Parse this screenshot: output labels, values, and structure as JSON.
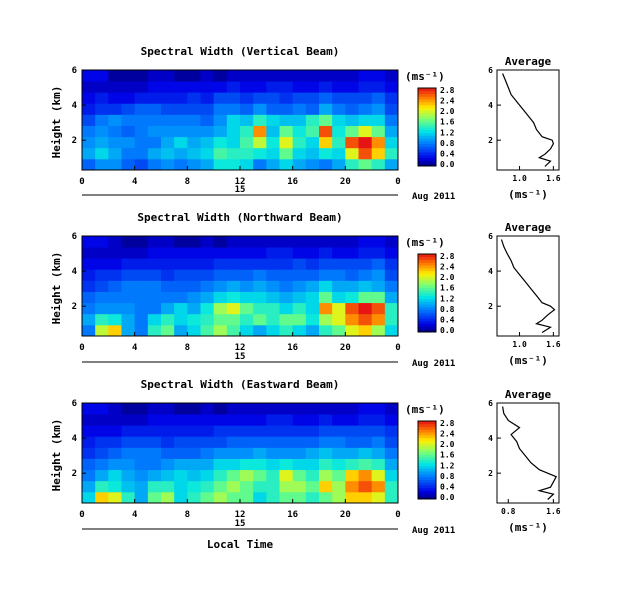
{
  "chart_data": [
    {
      "type": "heatmap",
      "title": "Spectral Width (Vertical Beam)",
      "ylabel": "Height (km)",
      "xlabel": "",
      "xlim": [
        0,
        24
      ],
      "ylim": [
        0.3,
        6.0
      ],
      "xticks": [
        "0",
        "4",
        "8",
        "12",
        "16",
        "20",
        "0"
      ],
      "yticks": [
        "2",
        "4",
        "6"
      ],
      "date_marker": "15",
      "date_label": "Aug 2011",
      "colorbar": {
        "unit": "(ms⁻¹)",
        "min": 0.0,
        "max": 2.8,
        "labels": [
          "2.8",
          "2.4",
          "2.0",
          "1.6",
          "1.2",
          "0.8",
          "0.4",
          "0.0"
        ]
      },
      "rows_low_to_high": [
        [
          0.7,
          0.9,
          0.9,
          0.7,
          0.6,
          0.8,
          0.9,
          0.8,
          0.9,
          1.0,
          1.3,
          1.3,
          1.2,
          0.8,
          1.0,
          1.2,
          1.0,
          0.9,
          0.8,
          1.0,
          1.4,
          1.6,
          1.4,
          1.0
        ],
        [
          1.0,
          1.2,
          1.0,
          0.8,
          0.8,
          1.0,
          1.1,
          1.0,
          1.1,
          1.2,
          1.5,
          1.4,
          1.4,
          1.3,
          1.2,
          1.6,
          1.2,
          1.1,
          1.3,
          1.2,
          2.0,
          2.6,
          2.2,
          1.4
        ],
        [
          0.9,
          1.0,
          0.9,
          0.9,
          0.8,
          0.8,
          1.0,
          1.2,
          1.0,
          1.1,
          1.3,
          1.2,
          1.5,
          1.9,
          1.3,
          2.0,
          1.4,
          1.2,
          2.2,
          1.4,
          2.6,
          2.8,
          2.4,
          1.2
        ],
        [
          0.8,
          0.9,
          0.8,
          0.7,
          0.8,
          0.9,
          0.9,
          0.9,
          0.9,
          0.9,
          1.0,
          1.2,
          1.4,
          2.4,
          1.1,
          1.6,
          1.3,
          1.5,
          2.6,
          1.3,
          1.6,
          2.0,
          1.6,
          1.0
        ],
        [
          0.6,
          0.8,
          0.9,
          0.8,
          0.8,
          0.8,
          0.8,
          0.8,
          0.8,
          0.7,
          0.9,
          1.2,
          1.1,
          1.4,
          1.2,
          1.1,
          1.1,
          1.4,
          1.6,
          1.2,
          1.1,
          1.2,
          1.2,
          0.8
        ],
        [
          0.4,
          0.5,
          0.5,
          0.6,
          0.7,
          0.7,
          0.6,
          0.6,
          0.6,
          0.6,
          0.8,
          0.8,
          0.7,
          0.9,
          0.7,
          0.7,
          0.8,
          0.7,
          1.0,
          0.8,
          0.7,
          0.8,
          0.9,
          0.6
        ],
        [
          0.3,
          0.4,
          0.3,
          0.3,
          0.4,
          0.4,
          0.4,
          0.4,
          0.5,
          0.4,
          0.6,
          0.6,
          0.5,
          0.6,
          0.6,
          0.5,
          0.6,
          0.6,
          0.7,
          0.6,
          0.6,
          0.6,
          0.7,
          0.5
        ],
        [
          0.2,
          0.2,
          0.2,
          0.2,
          0.2,
          0.3,
          0.3,
          0.3,
          0.3,
          0.3,
          0.3,
          0.4,
          0.3,
          0.3,
          0.4,
          0.4,
          0.3,
          0.3,
          0.4,
          0.3,
          0.3,
          0.4,
          0.4,
          0.3
        ],
        [
          0.3,
          0.3,
          0.1,
          0.1,
          0.1,
          0.2,
          0.2,
          0.1,
          0.1,
          0.2,
          0.1,
          0.2,
          0.2,
          0.2,
          0.2,
          0.2,
          0.2,
          0.2,
          0.2,
          0.2,
          0.2,
          0.3,
          0.3,
          0.2
        ]
      ],
      "average_profile": {
        "title": "Average",
        "xlabel": "(ms⁻¹)",
        "xticks": [
          "1.0",
          "1.6"
        ],
        "yticks": [
          "2",
          "4",
          "6"
        ],
        "xlim": [
          0.6,
          1.7
        ],
        "ylim": [
          0.3,
          6.0
        ],
        "heights": [
          0.5,
          0.8,
          1.0,
          1.2,
          1.5,
          1.8,
          2.0,
          2.2,
          2.6,
          3.0,
          3.4,
          3.8,
          4.2,
          4.6,
          5.0,
          5.4,
          5.8
        ],
        "values": [
          1.45,
          1.55,
          1.35,
          1.45,
          1.55,
          1.6,
          1.58,
          1.4,
          1.3,
          1.25,
          1.15,
          1.05,
          0.95,
          0.85,
          0.8,
          0.75,
          0.7
        ]
      }
    },
    {
      "type": "heatmap",
      "title": "Spectral Width (Northward Beam)",
      "ylabel": "Height (km)",
      "xlabel": "",
      "xlim": [
        0,
        24
      ],
      "ylim": [
        0.3,
        6.0
      ],
      "xticks": [
        "0",
        "4",
        "8",
        "12",
        "16",
        "20",
        "0"
      ],
      "yticks": [
        "2",
        "4",
        "6"
      ],
      "date_marker": "15",
      "date_label": "Aug 2011",
      "colorbar": {
        "unit": "(ms⁻¹)",
        "min": 0.0,
        "max": 2.8,
        "labels": [
          "2.8",
          "2.4",
          "2.0",
          "1.6",
          "1.2",
          "0.8",
          "0.4",
          "0.0"
        ]
      },
      "rows_low_to_high": [
        [
          0.8,
          1.9,
          2.2,
          1.0,
          0.8,
          1.4,
          1.6,
          1.0,
          1.2,
          1.5,
          1.8,
          1.5,
          1.2,
          1.0,
          1.2,
          1.4,
          1.2,
          1.0,
          1.4,
          1.6,
          2.0,
          2.2,
          1.8,
          1.2
        ],
        [
          1.0,
          1.4,
          1.3,
          1.0,
          0.8,
          1.2,
          1.4,
          1.2,
          1.3,
          1.4,
          1.6,
          1.6,
          1.4,
          1.6,
          1.4,
          1.6,
          1.6,
          1.3,
          1.8,
          2.0,
          2.4,
          2.6,
          2.4,
          1.4
        ],
        [
          0.8,
          0.9,
          0.9,
          0.9,
          0.8,
          0.8,
          1.0,
          1.2,
          1.0,
          1.3,
          1.8,
          2.0,
          1.6,
          1.4,
          1.4,
          1.2,
          1.4,
          1.2,
          2.4,
          2.0,
          2.6,
          2.8,
          2.6,
          1.4
        ],
        [
          0.7,
          0.8,
          0.8,
          0.8,
          0.8,
          0.8,
          0.8,
          0.8,
          0.9,
          1.0,
          1.2,
          1.3,
          1.2,
          1.2,
          1.1,
          1.0,
          1.1,
          1.2,
          1.6,
          1.2,
          1.3,
          1.6,
          1.6,
          1.0
        ],
        [
          0.5,
          0.6,
          0.7,
          0.8,
          0.8,
          0.8,
          0.7,
          0.7,
          0.7,
          0.8,
          0.9,
          1.0,
          0.9,
          1.0,
          0.9,
          0.8,
          0.9,
          1.0,
          1.2,
          1.0,
          1.0,
          1.1,
          1.0,
          0.8
        ],
        [
          0.4,
          0.5,
          0.5,
          0.6,
          0.6,
          0.6,
          0.5,
          0.6,
          0.6,
          0.6,
          0.7,
          0.7,
          0.7,
          0.8,
          0.7,
          0.7,
          0.7,
          0.7,
          0.8,
          0.8,
          0.7,
          0.8,
          0.9,
          0.6
        ],
        [
          0.3,
          0.3,
          0.3,
          0.4,
          0.4,
          0.4,
          0.4,
          0.4,
          0.4,
          0.4,
          0.5,
          0.5,
          0.5,
          0.5,
          0.5,
          0.5,
          0.6,
          0.5,
          0.6,
          0.6,
          0.6,
          0.6,
          0.7,
          0.5
        ],
        [
          0.2,
          0.2,
          0.2,
          0.2,
          0.2,
          0.3,
          0.3,
          0.3,
          0.3,
          0.3,
          0.3,
          0.3,
          0.3,
          0.3,
          0.4,
          0.4,
          0.3,
          0.3,
          0.4,
          0.3,
          0.3,
          0.4,
          0.4,
          0.3
        ],
        [
          0.3,
          0.3,
          0.2,
          0.1,
          0.1,
          0.2,
          0.2,
          0.1,
          0.1,
          0.2,
          0.1,
          0.2,
          0.2,
          0.2,
          0.2,
          0.2,
          0.2,
          0.2,
          0.2,
          0.2,
          0.2,
          0.3,
          0.3,
          0.2
        ]
      ],
      "average_profile": {
        "title": "Average",
        "xlabel": "(ms⁻¹)",
        "xticks": [
          "1.0",
          "1.6"
        ],
        "yticks": [
          "2",
          "4",
          "6"
        ],
        "xlim": [
          0.6,
          1.7
        ],
        "ylim": [
          0.3,
          6.0
        ],
        "heights": [
          0.5,
          0.8,
          1.0,
          1.2,
          1.5,
          1.8,
          2.0,
          2.2,
          2.6,
          3.0,
          3.4,
          3.8,
          4.2,
          4.6,
          5.0,
          5.4,
          5.8
        ],
        "values": [
          1.4,
          1.55,
          1.3,
          1.4,
          1.5,
          1.62,
          1.55,
          1.4,
          1.3,
          1.2,
          1.1,
          1.0,
          0.9,
          0.85,
          0.78,
          0.72,
          0.68
        ]
      }
    },
    {
      "type": "heatmap",
      "title": "Spectral Width (Eastward Beam)",
      "ylabel": "Height (km)",
      "xlabel": "Local Time",
      "xlim": [
        0,
        24
      ],
      "ylim": [
        0.3,
        6.0
      ],
      "xticks": [
        "0",
        "4",
        "8",
        "12",
        "16",
        "20",
        "0"
      ],
      "yticks": [
        "2",
        "4",
        "6"
      ],
      "date_marker": "15",
      "date_label": "Aug 2011",
      "colorbar": {
        "unit": "(ms⁻¹)",
        "min": 0.0,
        "max": 2.8,
        "labels": [
          "2.8",
          "2.4",
          "2.0",
          "1.6",
          "1.2",
          "0.8",
          "0.4",
          "0.0"
        ]
      },
      "rows_low_to_high": [
        [
          1.2,
          2.2,
          2.0,
          1.4,
          1.0,
          1.6,
          1.8,
          1.2,
          1.4,
          1.6,
          1.8,
          1.6,
          1.6,
          1.2,
          1.4,
          1.6,
          1.6,
          1.4,
          1.6,
          1.8,
          2.2,
          2.2,
          2.0,
          1.4
        ],
        [
          1.0,
          1.4,
          1.3,
          1.1,
          1.0,
          1.4,
          1.4,
          1.2,
          1.3,
          1.4,
          1.6,
          1.8,
          1.6,
          1.4,
          1.4,
          1.8,
          1.8,
          1.6,
          2.2,
          1.8,
          2.4,
          2.6,
          2.4,
          1.4
        ],
        [
          0.8,
          1.0,
          1.2,
          1.0,
          0.9,
          1.0,
          1.1,
          1.2,
          1.1,
          1.2,
          1.4,
          1.6,
          1.8,
          1.6,
          1.4,
          2.0,
          1.6,
          1.4,
          1.8,
          1.6,
          2.2,
          2.4,
          2.0,
          1.2
        ],
        [
          0.7,
          0.8,
          0.9,
          0.9,
          0.8,
          0.8,
          0.9,
          1.0,
          1.0,
          1.0,
          1.2,
          1.2,
          1.3,
          1.3,
          1.2,
          1.3,
          1.2,
          1.2,
          1.4,
          1.3,
          1.4,
          1.5,
          1.4,
          1.0
        ],
        [
          0.5,
          0.6,
          0.7,
          0.8,
          0.8,
          0.8,
          0.7,
          0.7,
          0.7,
          0.8,
          0.9,
          0.9,
          0.9,
          1.0,
          0.9,
          0.9,
          0.9,
          1.0,
          1.1,
          1.0,
          1.0,
          1.1,
          1.0,
          0.8
        ],
        [
          0.4,
          0.5,
          0.5,
          0.6,
          0.6,
          0.6,
          0.5,
          0.6,
          0.6,
          0.6,
          0.6,
          0.7,
          0.7,
          0.7,
          0.7,
          0.7,
          0.7,
          0.7,
          0.8,
          0.8,
          0.7,
          0.7,
          0.8,
          0.6
        ],
        [
          0.3,
          0.3,
          0.3,
          0.4,
          0.4,
          0.4,
          0.4,
          0.4,
          0.4,
          0.4,
          0.5,
          0.5,
          0.5,
          0.5,
          0.5,
          0.5,
          0.5,
          0.5,
          0.6,
          0.6,
          0.6,
          0.6,
          0.6,
          0.5
        ],
        [
          0.2,
          0.2,
          0.2,
          0.2,
          0.2,
          0.3,
          0.3,
          0.3,
          0.3,
          0.3,
          0.3,
          0.3,
          0.3,
          0.3,
          0.4,
          0.4,
          0.3,
          0.3,
          0.4,
          0.3,
          0.3,
          0.4,
          0.4,
          0.3
        ],
        [
          0.3,
          0.3,
          0.2,
          0.1,
          0.1,
          0.2,
          0.2,
          0.1,
          0.1,
          0.2,
          0.1,
          0.2,
          0.2,
          0.2,
          0.2,
          0.2,
          0.2,
          0.2,
          0.2,
          0.2,
          0.2,
          0.3,
          0.3,
          0.2
        ]
      ],
      "average_profile": {
        "title": "Average",
        "xlabel": "(ms⁻¹)",
        "xticks": [
          "0.8",
          "1.6"
        ],
        "yticks": [
          "2",
          "4",
          "6"
        ],
        "xlim": [
          0.6,
          1.7
        ],
        "ylim": [
          0.3,
          6.0
        ],
        "heights": [
          0.5,
          0.8,
          1.0,
          1.2,
          1.5,
          1.8,
          2.0,
          2.2,
          2.6,
          3.0,
          3.4,
          3.8,
          4.2,
          4.6,
          5.0,
          5.4,
          5.8
        ],
        "values": [
          1.5,
          1.6,
          1.35,
          1.55,
          1.6,
          1.65,
          1.5,
          1.35,
          1.2,
          1.1,
          1.0,
          0.95,
          0.85,
          1.0,
          0.8,
          0.72,
          0.7
        ]
      }
    }
  ]
}
